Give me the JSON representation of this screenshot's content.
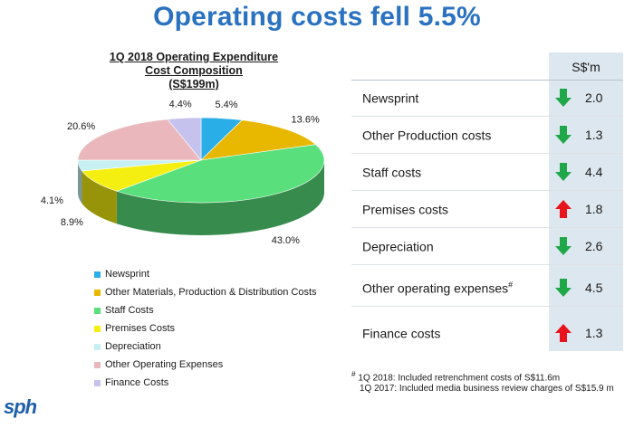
{
  "title": "Operating costs fell 5.5%",
  "chart_data": {
    "type": "pie",
    "title_lines": [
      "1Q 2018 Operating Expenditure",
      "Cost Composition",
      "(S$199m)"
    ],
    "slices": [
      {
        "label": "Newsprint",
        "value": 5.4,
        "value_label": "5.4%",
        "color": "#2aaee8"
      },
      {
        "label": "Other Materials, Production & Distribution Costs",
        "value": 13.6,
        "value_label": "13.6%",
        "color": "#e8b800"
      },
      {
        "label": "Staff Costs",
        "value": 43.0,
        "value_label": "43.0%",
        "color": "#59e07c"
      },
      {
        "label": "Premises Costs",
        "value": 8.9,
        "value_label": "8.9%",
        "color": "#f4ef10"
      },
      {
        "label": "Depreciation",
        "value": 4.1,
        "value_label": "4.1%",
        "color": "#c6f0f3"
      },
      {
        "label": "Other Operating Expenses",
        "value": 20.6,
        "value_label": "20.6%",
        "color": "#eab8bc"
      },
      {
        "label": "Finance Costs",
        "value": 4.4,
        "value_label": "4.4%",
        "color": "#c5c2ee"
      }
    ]
  },
  "table": {
    "column_header": "S$'m",
    "rows": [
      {
        "label": "Newsprint",
        "sup": "",
        "direction": "down",
        "value": "2.0"
      },
      {
        "label": "Other Production costs",
        "sup": "",
        "direction": "down",
        "value": "1.3"
      },
      {
        "label": "Staff costs",
        "sup": "",
        "direction": "down",
        "value": "4.4"
      },
      {
        "label": "Premises costs",
        "sup": "",
        "direction": "up",
        "value": "1.8"
      },
      {
        "label": "Depreciation",
        "sup": "",
        "direction": "down",
        "value": "2.6"
      },
      {
        "label": "Other operating expenses",
        "sup": "#",
        "direction": "down",
        "value": "4.5"
      },
      {
        "label": "Finance costs",
        "sup": "",
        "direction": "up",
        "value": "1.3"
      }
    ]
  },
  "footnote": {
    "marker": "#",
    "line1": "1Q 2018:  Included retrenchment costs of S$11.6m",
    "line2": "1Q 2017:  Included media business review charges of S$15.9 m"
  },
  "logo_text": "sph",
  "colors": {
    "title": "#2a72c0",
    "arrow_down": "#1fa84a",
    "arrow_up": "#e8141b",
    "table_column_bg": "#dde7ef"
  }
}
